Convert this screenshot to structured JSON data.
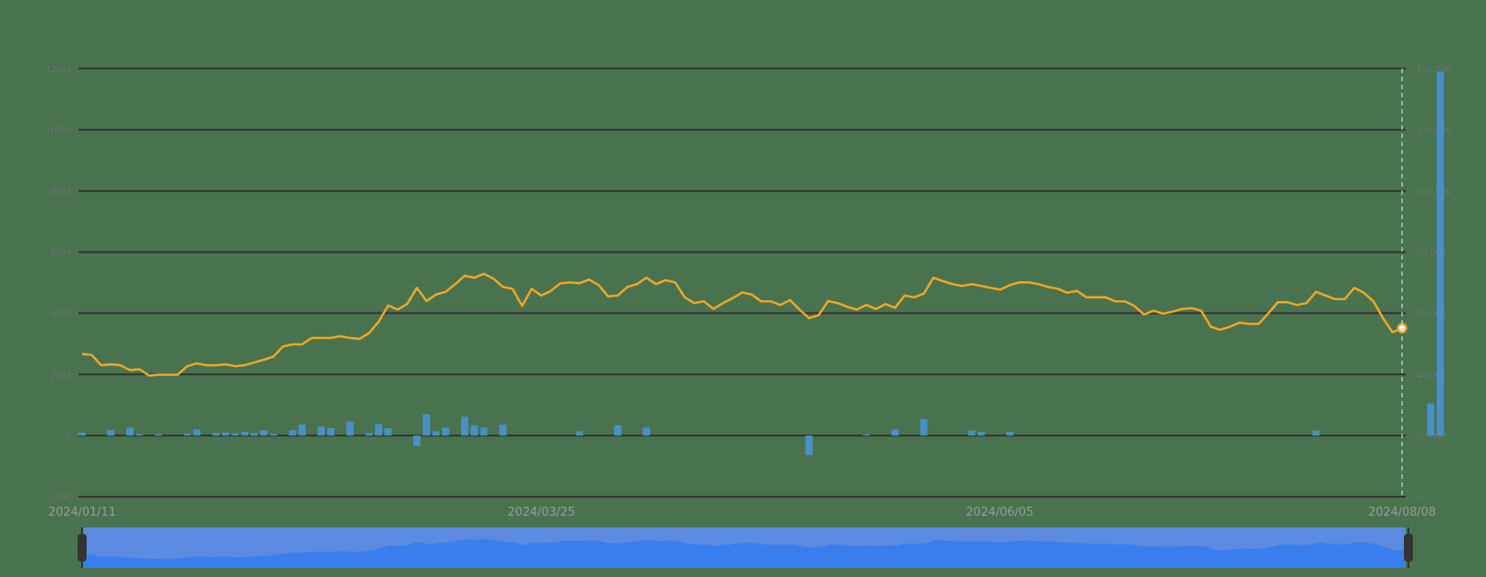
{
  "chart_data": {
    "type": "bar+line",
    "title": "",
    "xlabel": "",
    "ylabel_left": "",
    "ylabel_right": "",
    "x_start": "2024/01/11",
    "x_end": "2024/08/08",
    "x_tick_labels": [
      "2024/01/11",
      "2024/03/25",
      "2024/06/05",
      "2024/08/08"
    ],
    "left_axis": {
      "ticks": [
        -20000000,
        0,
        20000000,
        40000000,
        60000000,
        80000000,
        100000000,
        120000000
      ],
      "tick_labels": [
        "-20M",
        "0",
        "20M",
        "40M",
        "60M",
        "80M",
        "100M",
        "120M"
      ],
      "range": [
        -20000000,
        120000000
      ]
    },
    "right_axis": {
      "ticks": [
        0,
        20000,
        40000,
        60000,
        80000,
        100000,
        120000,
        140000
      ],
      "tick_labels": [
        "0",
        "20,000",
        "40,000",
        "60,000",
        "80,000",
        "100,000",
        "120,000",
        "140,000"
      ],
      "range": [
        0,
        140000
      ]
    },
    "grid": true,
    "legend": "none",
    "series": [
      {
        "name": "bars",
        "type": "bar",
        "axis": "left",
        "color": "#4b8fc7",
        "points": [
          [
            0,
            1.0
          ],
          [
            3,
            1.8
          ],
          [
            5,
            2.6
          ],
          [
            6,
            0.5
          ],
          [
            8,
            0.5
          ],
          [
            11,
            0.6
          ],
          [
            12,
            2.0
          ],
          [
            14,
            0.8
          ],
          [
            15,
            1.0
          ],
          [
            16,
            0.7
          ],
          [
            17,
            1.2
          ],
          [
            18,
            0.8
          ],
          [
            19,
            1.8
          ],
          [
            20,
            0.6
          ],
          [
            22,
            1.8
          ],
          [
            23,
            3.6
          ],
          [
            25,
            3.0
          ],
          [
            26,
            2.4
          ],
          [
            28,
            4.6
          ],
          [
            30,
            0.8
          ],
          [
            31,
            3.8
          ],
          [
            32,
            2.4
          ],
          [
            35,
            -3.4
          ],
          [
            36,
            7.0
          ],
          [
            37,
            1.4
          ],
          [
            38,
            2.6
          ],
          [
            40,
            6.2
          ],
          [
            41,
            3.4
          ],
          [
            42,
            2.6
          ],
          [
            44,
            3.6
          ],
          [
            52,
            1.4
          ],
          [
            56,
            3.4
          ],
          [
            59,
            2.6
          ],
          [
            76,
            -6.4
          ],
          [
            82,
            0.4
          ],
          [
            85,
            2.0
          ],
          [
            88,
            5.4
          ],
          [
            93,
            1.6
          ],
          [
            94,
            1.2
          ],
          [
            97,
            1.2
          ],
          [
            129,
            1.6
          ],
          [
            141,
            10.5
          ],
          [
            142,
            119.0
          ]
        ],
        "unit": "M"
      },
      {
        "name": "line",
        "type": "line",
        "axis": "right",
        "color": "#f5a623",
        "values": [
          46700,
          46400,
          43000,
          43300,
          43000,
          41400,
          41700,
          39600,
          39900,
          39900,
          39900,
          42700,
          43600,
          43000,
          43000,
          43300,
          42700,
          43000,
          43900,
          44800,
          45800,
          49100,
          49800,
          49800,
          51900,
          51900,
          51900,
          52500,
          51900,
          51600,
          53500,
          57200,
          62500,
          61200,
          63100,
          68300,
          64000,
          66100,
          67000,
          69500,
          72300,
          71600,
          72900,
          71300,
          68600,
          68000,
          62400,
          68000,
          65800,
          67300,
          69800,
          70100,
          69800,
          71000,
          69200,
          65500,
          65800,
          68600,
          69500,
          71600,
          69500,
          70800,
          70100,
          65200,
          63300,
          63900,
          61400,
          63300,
          64900,
          66800,
          66100,
          63900,
          63900,
          62700,
          64300,
          61200,
          58400,
          59400,
          64000,
          63300,
          62100,
          61200,
          62700,
          61400,
          63000,
          61800,
          65800,
          65200,
          66400,
          71600,
          70500,
          69500,
          68900,
          69500,
          68900,
          68300,
          67700,
          69200,
          70100,
          70100,
          69500,
          68600,
          68000,
          66700,
          67300,
          65200,
          65200,
          65200,
          63900,
          63900,
          62400,
          59600,
          60800,
          59900,
          60500,
          61400,
          61700,
          60800,
          55600,
          54600,
          55600,
          56900,
          56500,
          56500,
          59900,
          63600,
          63600,
          62700,
          63300,
          67000,
          65800,
          64600,
          64600,
          68300,
          66700,
          63900,
          58400,
          53800,
          55100
        ]
      }
    ]
  },
  "datazoom": {
    "start_label": "2024/01/11",
    "end_label": "2024/08/08",
    "start_percent": 0,
    "end_percent": 100
  },
  "tooltip_marker": {
    "date": "2024/08/08",
    "line_value": 55100
  },
  "colors": {
    "background": "#48734e",
    "grid": "#333333",
    "bar": "#4b8fc7",
    "line": "#f5a623",
    "slider_bg": "#5b8ae0",
    "slider_area": "#3a7ded",
    "handle": "#333333",
    "axis_label": "#6e7079",
    "date_label": "#9a9a9a"
  }
}
